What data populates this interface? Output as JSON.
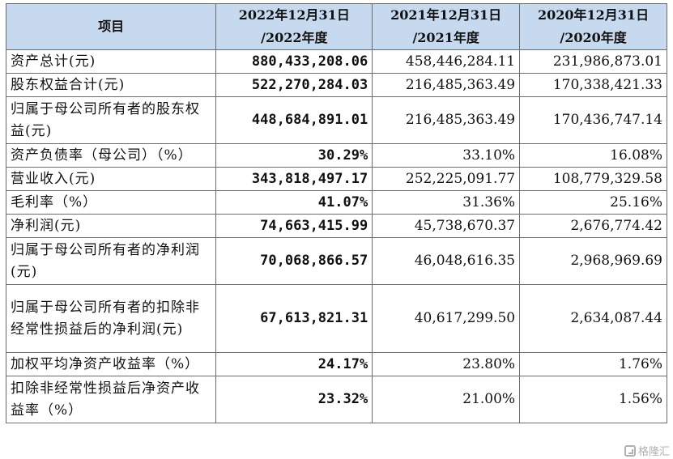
{
  "table": {
    "headers": [
      {
        "lines": [
          "项目"
        ]
      },
      {
        "lines": [
          "2022年12月31日",
          "/2022年度"
        ]
      },
      {
        "lines": [
          "2021年12月31日",
          "/2021年度"
        ]
      },
      {
        "lines": [
          "2020年12月31日",
          "/2020年度"
        ]
      }
    ],
    "rows": [
      {
        "item": "资产总计(元)",
        "v2022": "880,433,208.06",
        "v2021": "458,446,284.11",
        "v2020": "231,986,873.01"
      },
      {
        "item": "股东权益合计(元)",
        "v2022": "522,270,284.03",
        "v2021": "216,485,363.49",
        "v2020": "170,338,421.33"
      },
      {
        "item": "归属于母公司所有者的股东权益(元)",
        "v2022": "448,684,891.01",
        "v2021": "216,485,363.49",
        "v2020": "170,436,747.14"
      },
      {
        "item": "资产负债率（母公司）（%）",
        "v2022": "30.29%",
        "v2021": "33.10%",
        "v2020": "16.08%"
      },
      {
        "item": "营业收入(元)",
        "v2022": "343,818,497.17",
        "v2021": "252,225,091.77",
        "v2020": "108,779,329.58"
      },
      {
        "item": "毛利率（%）",
        "v2022": "41.07%",
        "v2021": "31.36%",
        "v2020": "25.16%"
      },
      {
        "item": "净利润(元)",
        "v2022": "74,663,415.99",
        "v2021": "45,738,670.37",
        "v2020": "2,676,774.42"
      },
      {
        "item": "归属于母公司所有者的净利润(元)",
        "v2022": "70,068,866.57",
        "v2021": "46,048,616.35",
        "v2020": "2,968,969.69"
      },
      {
        "item": "归属于母公司所有者的扣除非经常性损益后的净利润(元)",
        "v2022": "67,613,821.31",
        "v2021": "40,617,299.50",
        "v2020": "2,634,087.44"
      },
      {
        "item": "加权平均净资产收益率（%）",
        "v2022": "24.17%",
        "v2021": "23.80%",
        "v2020": "1.76%"
      },
      {
        "item": "扣除非经常性损益后净资产收益率（%）",
        "v2022": "23.32%",
        "v2021": "21.00%",
        "v2020": "1.56%"
      }
    ]
  },
  "watermark": {
    "text": "格隆汇",
    "icon": "gelonghui-logo-icon"
  }
}
